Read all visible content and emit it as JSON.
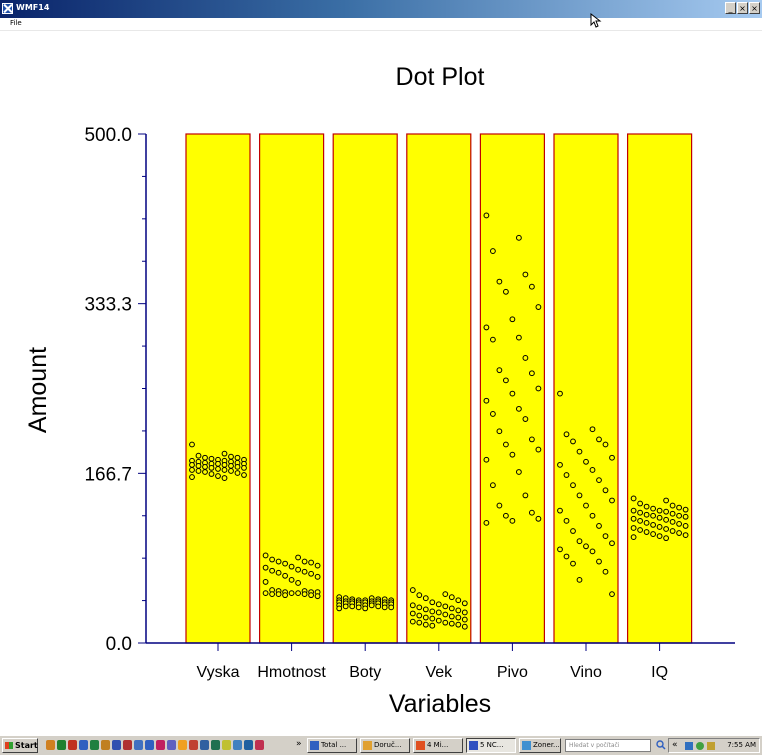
{
  "window": {
    "title": "WMF14",
    "controls": [
      "_",
      "×",
      "×"
    ]
  },
  "menu": {
    "file": "File"
  },
  "chart_data": {
    "type": "scatter",
    "title": "Dot Plot",
    "xlabel": "Variables",
    "ylabel": "Amount",
    "ylim": [
      0,
      500
    ],
    "yticks": [
      "500.0",
      "333.3",
      "166.7",
      "0.0"
    ],
    "yticks_values": [
      500,
      333.3,
      166.7,
      0
    ],
    "categories": [
      "Vyska",
      "Hmotnost",
      "Boty",
      "Vek",
      "Pivo",
      "Vino",
      "IQ"
    ],
    "colors": {
      "panel": "#ffff00",
      "panel_border": "#c00000",
      "axis": "#000080",
      "dot_stroke": "#000000"
    },
    "series": [
      {
        "values": [
          195,
          186,
          184,
          183,
          182,
          182,
          181,
          180,
          180,
          179,
          179,
          178,
          178,
          177,
          177,
          176,
          176,
          176,
          175,
          175,
          174,
          174,
          173,
          173,
          172,
          172,
          171,
          170,
          170,
          169,
          169,
          168,
          167,
          166,
          165,
          164,
          163,
          162
        ]
      },
      {
        "values": [
          86,
          84,
          82,
          80,
          80,
          79,
          78,
          76,
          75,
          74,
          72,
          71,
          70,
          69,
          68,
          66,
          65,
          62,
          60,
          59,
          52,
          51,
          51,
          50,
          50,
          50,
          49,
          49,
          49,
          48,
          48,
          48,
          47,
          47,
          46
        ]
      },
      {
        "values": [
          45,
          44,
          44,
          43,
          43,
          43,
          42,
          42,
          42,
          42,
          41,
          41,
          41,
          41,
          40,
          40,
          40,
          40,
          40,
          39,
          39,
          39,
          39,
          38,
          38,
          38,
          37,
          37,
          37,
          36,
          36,
          36,
          35,
          35,
          35,
          34,
          34
        ]
      },
      {
        "values": [
          52,
          48,
          47,
          45,
          44,
          42,
          40,
          39,
          38,
          37,
          36,
          35,
          34,
          33,
          32,
          31,
          30,
          30,
          29,
          28,
          27,
          26,
          25,
          25,
          24,
          23,
          22,
          21,
          20,
          20,
          19,
          18,
          18,
          17,
          16
        ]
      },
      {
        "values": [
          420,
          398,
          385,
          362,
          355,
          350,
          345,
          330,
          318,
          310,
          300,
          298,
          280,
          268,
          265,
          258,
          250,
          245,
          238,
          230,
          225,
          220,
          208,
          200,
          195,
          190,
          185,
          180,
          168,
          155,
          145,
          135,
          128,
          125,
          122,
          120,
          118
        ]
      },
      {
        "values": [
          245,
          210,
          205,
          200,
          198,
          195,
          188,
          182,
          178,
          175,
          170,
          165,
          160,
          155,
          150,
          145,
          140,
          135,
          130,
          125,
          120,
          115,
          110,
          105,
          100,
          98,
          95,
          92,
          90,
          85,
          80,
          78,
          70,
          62,
          48
        ]
      },
      {
        "values": [
          142,
          140,
          137,
          135,
          134,
          133,
          132,
          131,
          130,
          130,
          129,
          128,
          127,
          126,
          125,
          125,
          124,
          123,
          122,
          121,
          120,
          119,
          118,
          117,
          116,
          115,
          114,
          113,
          112,
          111,
          110,
          109,
          108,
          107,
          106,
          105,
          104,
          103
        ]
      }
    ]
  },
  "taskbar": {
    "start_label": "Start",
    "quicklaunch_colors": [
      "#d08020",
      "#208030",
      "#c03020",
      "#3060c0",
      "#208040",
      "#c08020",
      "#3050b0",
      "#b03030",
      "#4070c0",
      "#3060c0",
      "#c02060",
      "#6060c0",
      "#f0a020",
      "#c04030",
      "#3060a0",
      "#207050",
      "#c0c030",
      "#4080c0",
      "#2060a0",
      "#c03050"
    ],
    "overflow": "»",
    "tasks": [
      {
        "label": "Total ...",
        "icon_color": "#3060c0"
      },
      {
        "label": "Doruč...",
        "icon_color": "#e0a030"
      },
      {
        "label": "4 Mi...",
        "icon_color": "#e05020"
      },
      {
        "label": "5 NC...",
        "icon_color": "#3050c0"
      },
      {
        "label": "Zoner...",
        "icon_color": "#4090d0"
      }
    ],
    "search_placeholder": "Hledat v počítači",
    "tray_expand": "«",
    "clock": "7:55 AM"
  }
}
